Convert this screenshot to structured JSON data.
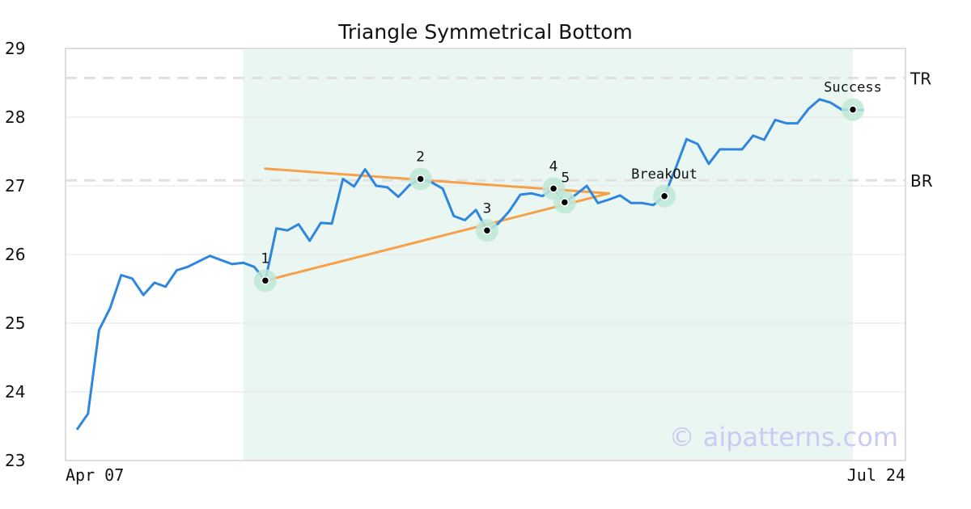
{
  "colors": {
    "price": "#2e86de",
    "trendline": "#f7a04a",
    "highlight": "#eaf6f1",
    "marker_ring": "#bfe8d6",
    "level_line": "#e0e0e0",
    "frame": "#dddddd",
    "grid": "#e6e6e6",
    "watermark": "#c9cbf4"
  },
  "watermark": "© aipatterns.com",
  "chart_data": {
    "type": "line",
    "title": "Triangle Symmetrical Bottom",
    "xlabel": "",
    "ylabel": "",
    "ylim": [
      23,
      29
    ],
    "yticks": [
      23,
      24,
      25,
      26,
      27,
      28,
      29
    ],
    "x_ticks": [
      {
        "index": 0,
        "label": "Apr 07"
      },
      {
        "index": 70,
        "label": "Jul 24"
      }
    ],
    "grid": "horizontal",
    "series": [
      {
        "values": [
          23.45,
          23.68,
          24.9,
          25.22,
          25.7,
          25.65,
          25.41,
          25.59,
          25.53,
          25.77,
          25.82,
          25.9,
          25.98,
          25.92,
          25.86,
          25.88,
          25.82,
          25.62,
          26.38,
          26.35,
          26.44,
          26.2,
          26.46,
          26.45,
          27.1,
          26.99,
          27.24,
          27.0,
          26.98,
          26.84,
          27.01,
          27.1,
          27.05,
          26.96,
          26.56,
          26.5,
          26.65,
          26.35,
          26.45,
          26.63,
          26.87,
          26.89,
          26.85,
          26.96,
          26.76,
          26.87,
          27.0,
          26.75,
          26.8,
          26.86,
          26.75,
          26.75,
          26.72,
          26.85,
          27.25,
          27.68,
          27.61,
          27.32,
          27.53,
          27.53,
          27.53,
          27.73,
          27.67,
          27.96,
          27.91,
          27.91,
          28.12,
          28.26,
          28.21,
          28.11,
          28.11,
          28.1
        ]
      }
    ],
    "highlight_region": {
      "from_index": 15,
      "to_index": 70
    },
    "levels": [
      {
        "label": "TR",
        "value": 28.57
      },
      {
        "label": "BR",
        "value": 27.08
      }
    ],
    "trendlines": [
      {
        "from": {
          "index": 17,
          "value": 27.25
        },
        "to": {
          "index": 48,
          "value": 26.89
        }
      },
      {
        "from": {
          "index": 17,
          "value": 25.62
        },
        "to": {
          "index": 48,
          "value": 26.89
        }
      }
    ],
    "points": [
      {
        "label": "1",
        "index": 17,
        "value": 25.62,
        "label_pos": "above"
      },
      {
        "label": "2",
        "index": 31,
        "value": 27.1,
        "label_pos": "above"
      },
      {
        "label": "3",
        "index": 37,
        "value": 26.35,
        "label_pos": "above"
      },
      {
        "label": "4",
        "index": 43,
        "value": 26.96,
        "label_pos": "above"
      },
      {
        "label": "5",
        "index": 44,
        "value": 26.76,
        "label_pos": "above-right"
      },
      {
        "label": "BreakOut",
        "index": 53,
        "value": 26.85,
        "label_pos": "above",
        "style": "event"
      },
      {
        "label": "Success",
        "index": 70,
        "value": 28.11,
        "label_pos": "above",
        "style": "event"
      }
    ]
  }
}
